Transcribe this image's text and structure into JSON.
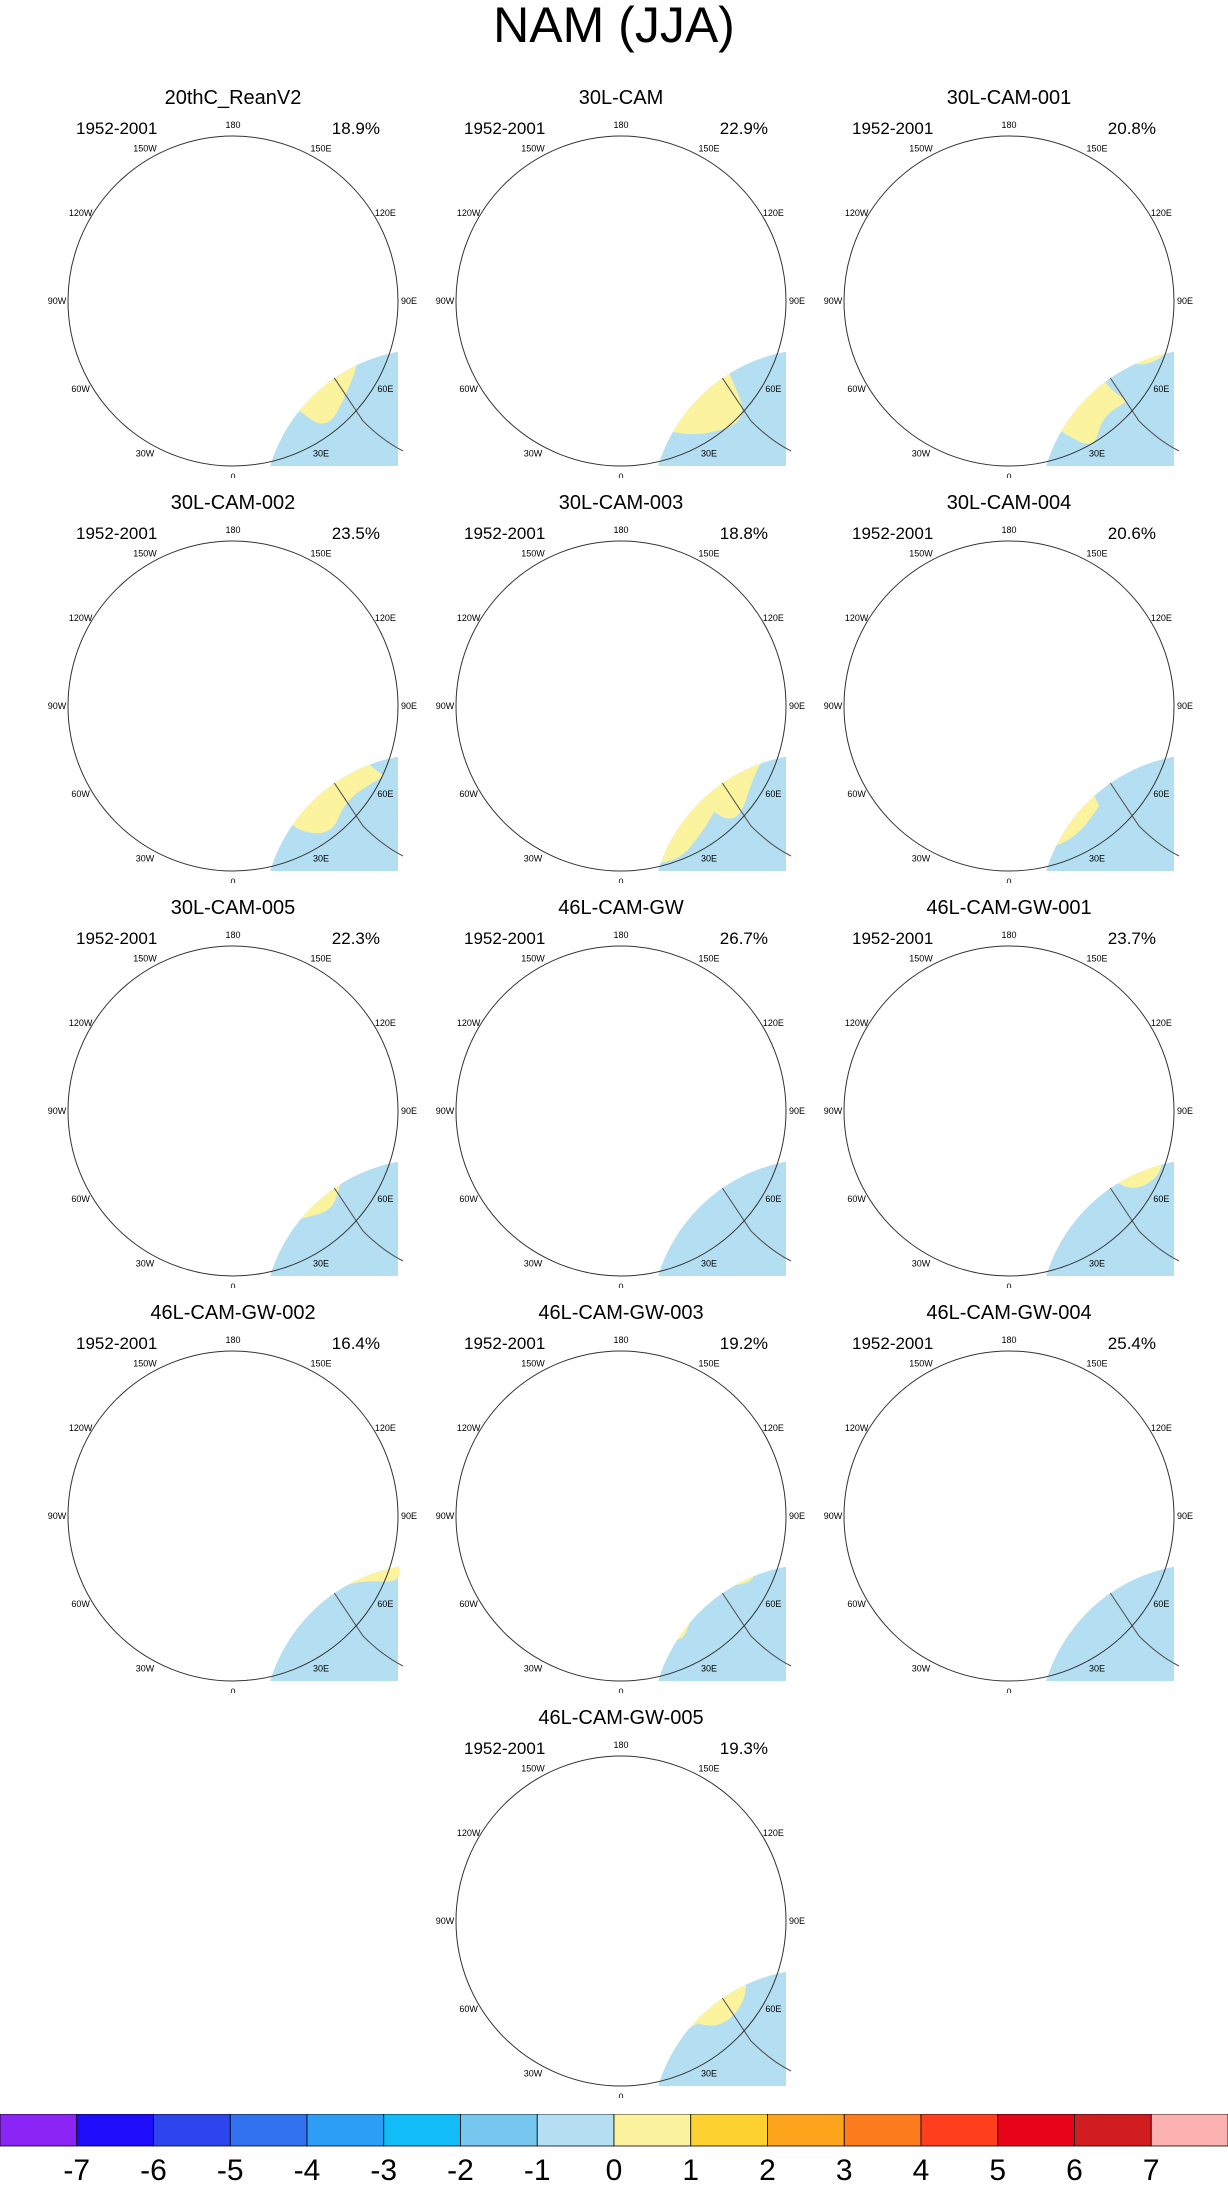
{
  "figure_title": "NAM (JJA)",
  "colors": {
    "-7": "#8a25f5",
    "-6": "#1e0df8",
    "-5": "#2d45ed",
    "-4": "#3271f0",
    "-3": "#2d9ef6",
    "-2": "#12bcf7",
    "-1": "#75c7ef",
    "0": "#b4dff2",
    "1": "#fcf39e",
    "2": "#fdd130",
    "3": "#fca51c",
    "4": "#fd7c1d",
    "5": "#ff3e1d",
    "6": "#e8041a",
    "7": "#d21d20",
    "8": "#fcb1b1",
    "land": "#555555"
  },
  "map_labels": {
    "lon_180": "180",
    "lon_150w": "150W",
    "lon_150e": "150E",
    "lon_120w": "120W",
    "lon_120e": "120E",
    "lon_90w": "90W",
    "lon_90e": "90E",
    "lon_60w": "60W",
    "lon_60e": "60E",
    "lon_30w": "30W",
    "lon_30e": "30E",
    "lon_0": "0"
  },
  "panels": [
    {
      "title": "20thC_ReanV2",
      "period": "1952-2001",
      "pct": "18.9%"
    },
    {
      "title": "30L-CAM",
      "period": "1952-2001",
      "pct": "22.9%"
    },
    {
      "title": "30L-CAM-001",
      "period": "1952-2001",
      "pct": "20.8%"
    },
    {
      "title": "30L-CAM-002",
      "period": "1952-2001",
      "pct": "23.5%"
    },
    {
      "title": "30L-CAM-003",
      "period": "1952-2001",
      "pct": "18.8%"
    },
    {
      "title": "30L-CAM-004",
      "period": "1952-2001",
      "pct": "20.6%"
    },
    {
      "title": "30L-CAM-005",
      "period": "1952-2001",
      "pct": "22.3%"
    },
    {
      "title": "46L-CAM-GW",
      "period": "1952-2001",
      "pct": "26.7%"
    },
    {
      "title": "46L-CAM-GW-001",
      "period": "1952-2001",
      "pct": "23.7%"
    },
    {
      "title": "46L-CAM-GW-002",
      "period": "1952-2001",
      "pct": "16.4%"
    },
    {
      "title": "46L-CAM-GW-003",
      "period": "1952-2001",
      "pct": "19.2%"
    },
    {
      "title": "46L-CAM-GW-004",
      "period": "1952-2001",
      "pct": "25.4%"
    },
    {
      "title": "46L-CAM-GW-005",
      "period": "1952-2001",
      "pct": "19.3%"
    }
  ],
  "colorbar": {
    "labels": [
      "-7",
      "-6",
      "-5",
      "-4",
      "-3",
      "-2",
      "-1",
      "0",
      "1",
      "2",
      "3",
      "4",
      "5",
      "6",
      "7"
    ]
  }
}
